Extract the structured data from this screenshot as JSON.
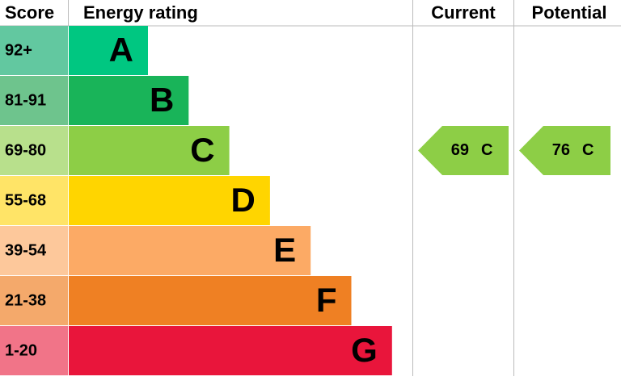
{
  "header": {
    "score": "Score",
    "rating": "Energy rating",
    "current": "Current",
    "potential": "Potential"
  },
  "bands": [
    {
      "range": "92+",
      "letter": "A",
      "color": "#00c781",
      "light": "#62c8a0"
    },
    {
      "range": "81-91",
      "letter": "B",
      "color": "#19b459",
      "light": "#6ec48d"
    },
    {
      "range": "69-80",
      "letter": "C",
      "color": "#8dce46",
      "light": "#b8e08c"
    },
    {
      "range": "55-68",
      "letter": "D",
      "color": "#ffd500",
      "light": "#ffe467"
    },
    {
      "range": "39-54",
      "letter": "E",
      "color": "#fcaa65",
      "light": "#fdc89b"
    },
    {
      "range": "21-38",
      "letter": "F",
      "color": "#ef8023",
      "light": "#f4a96b"
    },
    {
      "range": "1-20",
      "letter": "G",
      "color": "#e9153b",
      "light": "#f17488"
    }
  ],
  "current": {
    "score": 69,
    "letter": "C"
  },
  "potential": {
    "score": 76,
    "letter": "C"
  }
}
